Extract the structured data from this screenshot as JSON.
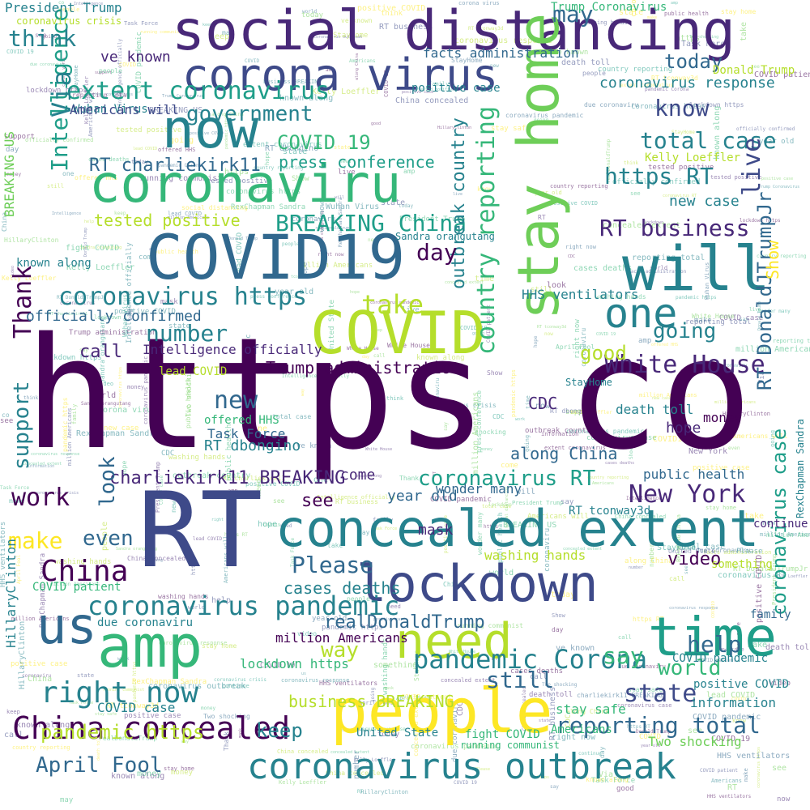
{
  "palette": [
    "#440154",
    "#482878",
    "#3e4a89",
    "#31688e",
    "#26828e",
    "#1f9e89",
    "#35b779",
    "#6ece58",
    "#b5de2b",
    "#fde725"
  ],
  "words": [
    {
      "text": "https",
      "color": "#440154"
    },
    {
      "text": "co",
      "color": "#440154"
    },
    {
      "text": "RT",
      "color": "#3e4a89"
    },
    {
      "text": "social distancing",
      "color": "#482878"
    },
    {
      "text": "stay home",
      "color": "#6ece58"
    },
    {
      "text": "corona virus",
      "color": "#3e4a89"
    },
    {
      "text": "now",
      "color": "#26828e"
    },
    {
      "text": "coronaviru",
      "color": "#35b779"
    },
    {
      "text": "COVID19",
      "color": "#31688e"
    },
    {
      "text": "will",
      "color": "#26828e"
    },
    {
      "text": "COVID",
      "color": "#b5de2b"
    },
    {
      "text": "concealed extent",
      "color": "#26828e"
    },
    {
      "text": "lockdown",
      "color": "#3e4a89"
    },
    {
      "text": "time",
      "color": "#1f9e89"
    },
    {
      "text": "amp",
      "color": "#35b779"
    },
    {
      "text": "people",
      "color": "#fde725"
    },
    {
      "text": "need",
      "color": "#b5de2b"
    },
    {
      "text": "us",
      "color": "#31688e"
    },
    {
      "text": "coronavirus outbreak",
      "color": "#26828e"
    },
    {
      "text": "one",
      "color": "#26828e"
    },
    {
      "text": "China concealed",
      "color": "#440154"
    },
    {
      "text": "coronavirus pandemic",
      "color": "#26828e"
    },
    {
      "text": "pandemic Corona",
      "color": "#26828e"
    },
    {
      "text": "right now",
      "color": "#26828e"
    },
    {
      "text": "China",
      "color": "#440154"
    },
    {
      "text": "New York",
      "color": "#482878"
    },
    {
      "text": "White House",
      "color": "#482878"
    },
    {
      "text": "coronavirus https",
      "color": "#26828e"
    },
    {
      "text": "extent coronavirus",
      "color": "#1f9e89"
    },
    {
      "text": "BREAKING China",
      "color": "#1f9e89"
    },
    {
      "text": "RT charliekirk11",
      "color": "#31688e"
    },
    {
      "text": "charliekirk11 BREAKING",
      "color": "#482878"
    },
    {
      "text": "coronavirus RT",
      "color": "#1f9e89"
    },
    {
      "text": "reporting total",
      "color": "#31688e"
    },
    {
      "text": "total case",
      "color": "#26828e"
    },
    {
      "text": "government",
      "color": "#26828e"
    },
    {
      "text": "take",
      "color": "#b5de2b"
    },
    {
      "text": "number",
      "color": "#26828e"
    },
    {
      "text": "April Fool",
      "color": "#31688e"
    },
    {
      "text": "pandemic https",
      "color": "#b5de2b"
    },
    {
      "text": "outbreak country",
      "color": "#26828e"
    },
    {
      "text": "country reporting",
      "color": "#35b779"
    },
    {
      "text": "Intelligence",
      "color": "#1f9e89"
    },
    {
      "text": "RT DonaldJTrumpJr",
      "color": "#31688e"
    },
    {
      "text": "coronavirus case",
      "color": "#1f9e89"
    },
    {
      "text": "know",
      "color": "#3e4a89"
    },
    {
      "text": "today",
      "color": "#31688e"
    },
    {
      "text": "think",
      "color": "#26828e"
    },
    {
      "text": "President Trump",
      "color": "#26828e"
    },
    {
      "text": "Trump administration",
      "color": "#440154"
    },
    {
      "text": "world",
      "color": "#35b779"
    },
    {
      "text": "help",
      "color": "#31688e"
    },
    {
      "text": "say",
      "color": "#35b779"
    },
    {
      "text": "still",
      "color": "#31688e"
    },
    {
      "text": "state",
      "color": "#3e4a89"
    },
    {
      "text": "keep",
      "color": "#26828e"
    },
    {
      "text": "way",
      "color": "#b5de2b"
    },
    {
      "text": "Please",
      "color": "#31688e"
    },
    {
      "text": "even",
      "color": "#31688e"
    },
    {
      "text": "make",
      "color": "#fde725"
    },
    {
      "text": "work",
      "color": "#440154"
    },
    {
      "text": "look",
      "color": "#31688e"
    },
    {
      "text": "new",
      "color": "#31688e"
    },
    {
      "text": "support",
      "color": "#26828e"
    },
    {
      "text": "Thank",
      "color": "#440154"
    },
    {
      "text": "going",
      "color": "#26828e"
    },
    {
      "text": "good",
      "color": "#b5de2b"
    },
    {
      "text": "day",
      "color": "#440154"
    },
    {
      "text": "RT business",
      "color": "#482878"
    },
    {
      "text": "business BREAKING",
      "color": "#b5de2b"
    },
    {
      "text": "realDonaldTrump",
      "color": "#31688e"
    },
    {
      "text": "may",
      "color": "#31688e"
    },
    {
      "text": "https RT",
      "color": "#26828e"
    },
    {
      "text": "live",
      "color": "#3e4a89"
    },
    {
      "text": "COVID 19",
      "color": "#35b779"
    },
    {
      "text": "press conference",
      "color": "#1f9e89"
    },
    {
      "text": "tested positive",
      "color": "#b5de2b"
    },
    {
      "text": "Trump Coronavirus",
      "color": "#35b779"
    },
    {
      "text": "coronavirus response",
      "color": "#26828e"
    },
    {
      "text": "facts administration",
      "color": "#31688e"
    },
    {
      "text": "COVID patient",
      "color": "#35b779"
    },
    {
      "text": "coronavirus crisis",
      "color": "#b5de2b"
    },
    {
      "text": "BREAKING US",
      "color": "#6ece58"
    },
    {
      "text": "Via",
      "color": "#26828e"
    },
    {
      "text": "positive case",
      "color": "#26828e"
    },
    {
      "text": "ve known",
      "color": "#482878"
    },
    {
      "text": "known along",
      "color": "#26828e"
    },
    {
      "text": "officially confirmed",
      "color": "#31688e"
    },
    {
      "text": "Intelligence officially",
      "color": "#482878"
    },
    {
      "text": "lead COVID",
      "color": "#b5de2b"
    },
    {
      "text": "along China",
      "color": "#31688e"
    },
    {
      "text": "HHS ventilators",
      "color": "#26828e"
    },
    {
      "text": "Show",
      "color": "#fde725"
    },
    {
      "text": "new case",
      "color": "#26828e"
    },
    {
      "text": "HillaryClinton",
      "color": "#26828e"
    },
    {
      "text": "RexChapman Sandra",
      "color": "#26828e"
    },
    {
      "text": "StayHome",
      "color": "#26828e"
    },
    {
      "text": "death toll",
      "color": "#26828e"
    },
    {
      "text": "public health",
      "color": "#31688e"
    },
    {
      "text": "wonder many",
      "color": "#31688e"
    },
    {
      "text": "year old",
      "color": "#31688e"
    },
    {
      "text": "video",
      "color": "#440154"
    },
    {
      "text": "washing hands",
      "color": "#b5de2b"
    },
    {
      "text": "United State",
      "color": "#26828e"
    },
    {
      "text": "stay safe",
      "color": "#35b779"
    },
    {
      "text": "Two shocking",
      "color": "#6ece58"
    },
    {
      "text": "fight COVID",
      "color": "#35b779"
    },
    {
      "text": "COVID case",
      "color": "#26828e"
    },
    {
      "text": "lockdown https",
      "color": "#35b779"
    },
    {
      "text": "million Americans",
      "color": "#440154"
    },
    {
      "text": "due coronaviru",
      "color": "#26828e"
    },
    {
      "text": "Task Force",
      "color": "#31688e"
    },
    {
      "text": "offered HHS",
      "color": "#35b779"
    },
    {
      "text": "Wuhan Virus",
      "color": "#26828e"
    },
    {
      "text": "Americans will",
      "color": "#3e4a89"
    },
    {
      "text": "Kelly Loeffler",
      "color": "#b5de2b"
    },
    {
      "text": "Donald Trump",
      "color": "#b5de2b"
    },
    {
      "text": "CDC",
      "color": "#482878"
    },
    {
      "text": "hope",
      "color": "#482878"
    },
    {
      "text": "mask",
      "color": "#482878"
    },
    {
      "text": "see",
      "color": "#440154"
    },
    {
      "text": "call",
      "color": "#482878"
    },
    {
      "text": "RT dbongino",
      "color": "#26828e"
    },
    {
      "text": "RT tconway3d",
      "color": "#26828e"
    },
    {
      "text": "cases deaths",
      "color": "#26828e"
    },
    {
      "text": "come",
      "color": "#482878"
    },
    {
      "text": "information",
      "color": "#26828e"
    },
    {
      "text": "positive COVID",
      "color": "#26828e"
    },
    {
      "text": "COVID pandemic",
      "color": "#26828e"
    },
    {
      "text": "running communist",
      "color": "#35b779"
    },
    {
      "text": "Americans",
      "color": "#35b779"
    },
    {
      "text": "family",
      "color": "#31688e"
    },
    {
      "text": "continue",
      "color": "#482878"
    },
    {
      "text": "money",
      "color": "#440154"
    },
    {
      "text": "something",
      "color": "#b5de2b"
    },
    {
      "text": "Sandra orangutang",
      "color": "#26828e"
    }
  ]
}
